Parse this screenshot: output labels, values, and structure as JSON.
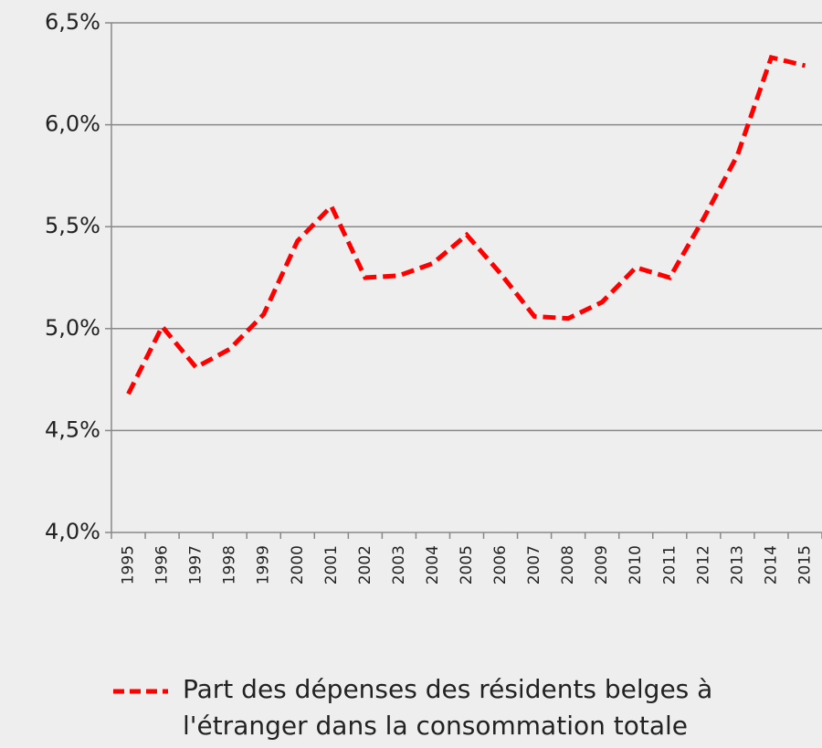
{
  "chart_data": {
    "type": "line",
    "categories": [
      "1995",
      "1996",
      "1997",
      "1998",
      "1999",
      "2000",
      "2001",
      "2002",
      "2003",
      "2004",
      "2005",
      "2006",
      "2007",
      "2008",
      "2009",
      "2010",
      "2011",
      "2012",
      "2013",
      "2014",
      "2015"
    ],
    "series": [
      {
        "name": "Part des dépenses des résidents belges à l'étranger dans la consommation totale",
        "color": "#ff0000",
        "values": [
          4.68,
          5.01,
          4.81,
          4.9,
          5.07,
          5.43,
          5.6,
          5.25,
          5.26,
          5.32,
          5.46,
          5.27,
          5.06,
          5.05,
          5.13,
          5.3,
          5.25,
          5.54,
          5.85,
          6.33,
          6.29
        ]
      }
    ],
    "ylim": [
      4.0,
      6.5
    ],
    "yticks": [
      {
        "value": 4.0,
        "label": "4,0%"
      },
      {
        "value": 4.5,
        "label": "4,5%"
      },
      {
        "value": 5.0,
        "label": "5,0%"
      },
      {
        "value": 5.5,
        "label": "5,5%"
      },
      {
        "value": 6.0,
        "label": "6,0%"
      },
      {
        "value": 6.5,
        "label": "6,5%"
      }
    ],
    "grid": true,
    "legend": "bottom"
  }
}
